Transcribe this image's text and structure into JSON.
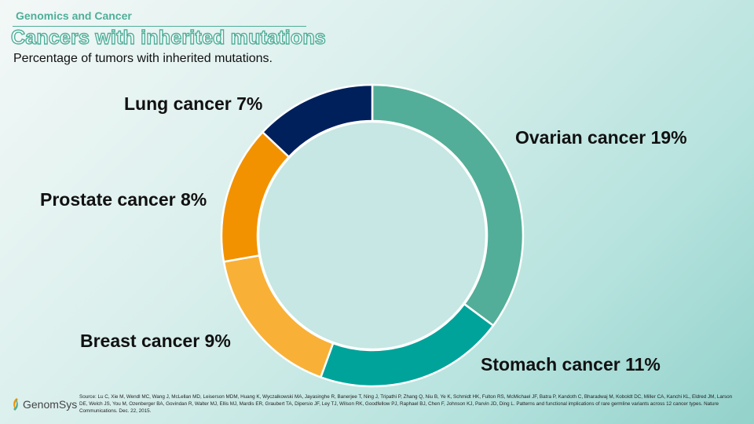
{
  "header": {
    "section": "Genomics and Cancer",
    "title": "Cancers with inherited mutations",
    "subtitle": "Percentage of tumors with inherited mutations."
  },
  "chart_data": {
    "type": "pie",
    "categories": [
      "Ovarian cancer",
      "Stomach cancer",
      "Breast cancer",
      "Prostate cancer",
      "Lung cancer"
    ],
    "values": [
      19,
      11,
      9,
      8,
      7
    ],
    "labels": [
      "Ovarian cancer 19%",
      "Stomach cancer 11%",
      "Breast cancer 9%",
      "Prostate cancer 8%",
      "Lung cancer 7%"
    ],
    "colors": [
      "#52ae98",
      "#00a39a",
      "#f9b037",
      "#f29200",
      "#00205c"
    ],
    "style": "donut"
  },
  "footer": {
    "logo": "GenomSys",
    "source": "Source: Lu C, Xie M, Wendl MC, Wang J, McLellan MD, Leiserson MDM, Huang K, Wyczalkowski MA, Jayasinghe R, Banerjee T, Ning J, Tripathi P, Zhang Q, Niu B, Ye K, Schmidt HK, Fulton RS, McMichael JF, Batra P, Kandoth C, Bharadwaj M, Koboldt DC, Miller CA, Kanchi KL, Eldred JM, Larson DE, Welch JS, You M, Ozenberger BA, Govindan R, Walter MJ, Ellis MJ, Mardis ER, Graubert TA, Dipersio JF, Ley TJ, Wilson RK, Goodfellow PJ, Raphael BJ, Chen F, Johnson KJ, Parvin JD, Ding L. Patterns and functional implications of rare germline variants across 12 cancer types. Nature Communications. Dec. 22, 2015."
  }
}
